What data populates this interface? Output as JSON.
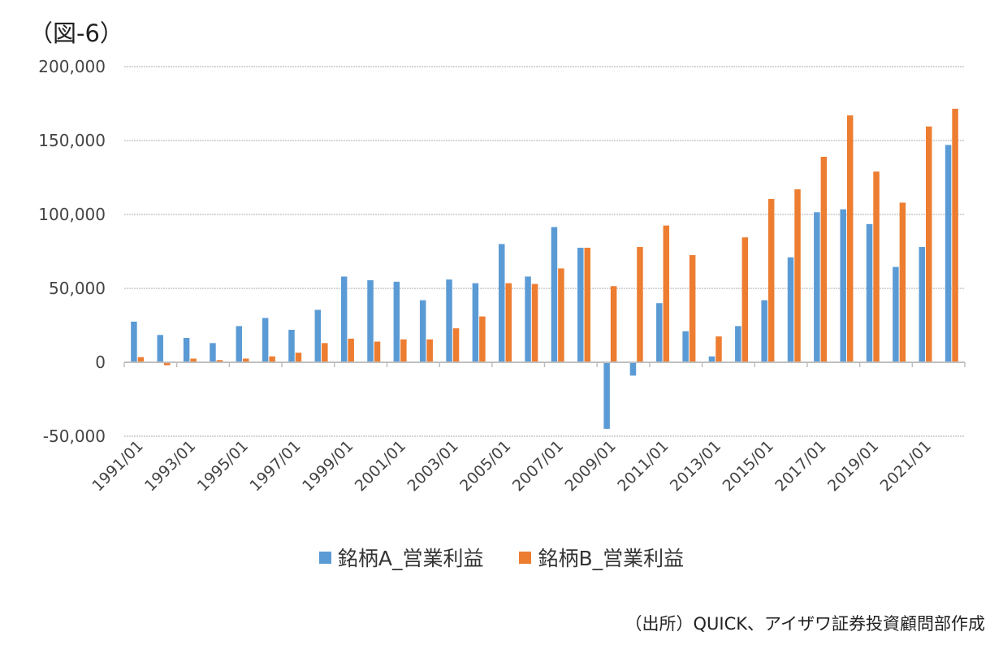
{
  "figure": {
    "title": "（図-6）",
    "source_note": "（出所）QUICK、アイザワ証券投資顧問部作成"
  },
  "colors": {
    "series_a": "#5b9bd5",
    "series_b": "#ed7d31",
    "grid": "#c8c8c8",
    "axis": "#bfbfbf"
  },
  "chart_data": {
    "type": "bar",
    "categories": [
      "1991/01",
      "1992/01",
      "1993/01",
      "1994/01",
      "1995/01",
      "1996/01",
      "1997/01",
      "1998/01",
      "1999/01",
      "2000/01",
      "2001/01",
      "2002/01",
      "2003/01",
      "2004/01",
      "2005/01",
      "2006/01",
      "2007/01",
      "2008/01",
      "2009/01",
      "2010/01",
      "2011/01",
      "2012/01",
      "2013/01",
      "2014/01",
      "2015/01",
      "2016/01",
      "2017/01",
      "2018/01",
      "2019/01",
      "2020/01",
      "2021/01",
      "2022/01"
    ],
    "x_tick_labels": [
      "1991/01",
      "1993/01",
      "1995/01",
      "1997/01",
      "1999/01",
      "2001/01",
      "2003/01",
      "2005/01",
      "2007/01",
      "2009/01",
      "2011/01",
      "2013/01",
      "2015/01",
      "2017/01",
      "2019/01",
      "2021/01"
    ],
    "series": [
      {
        "name": "銘柄A_営業利益",
        "values": [
          27500,
          18500,
          16500,
          13000,
          24500,
          30000,
          22000,
          35500,
          58000,
          55500,
          54500,
          42000,
          56000,
          53500,
          80000,
          58000,
          91500,
          77500,
          -45000,
          -9000,
          40000,
          21000,
          4000,
          24500,
          42000,
          71000,
          101500,
          103500,
          93500,
          64500,
          78000,
          147000
        ]
      },
      {
        "name": "銘柄B_営業利益",
        "values": [
          3500,
          -2000,
          2500,
          1500,
          2500,
          4000,
          6500,
          13000,
          16000,
          14000,
          15500,
          15500,
          23000,
          31000,
          53500,
          53000,
          63500,
          77500,
          51500,
          78000,
          92500,
          72500,
          17500,
          84500,
          110500,
          117000,
          139000,
          167000,
          129000,
          108000,
          159500,
          171500
        ]
      }
    ],
    "ylim": [
      -50000,
      200000
    ],
    "y_ticks": [
      -50000,
      0,
      50000,
      100000,
      150000,
      200000
    ],
    "y_tick_labels": [
      "-50,000",
      "0",
      "50,000",
      "100,000",
      "150,000",
      "200,000"
    ],
    "xlabel": "",
    "ylabel": "",
    "grid": true,
    "legend_position": "bottom"
  }
}
